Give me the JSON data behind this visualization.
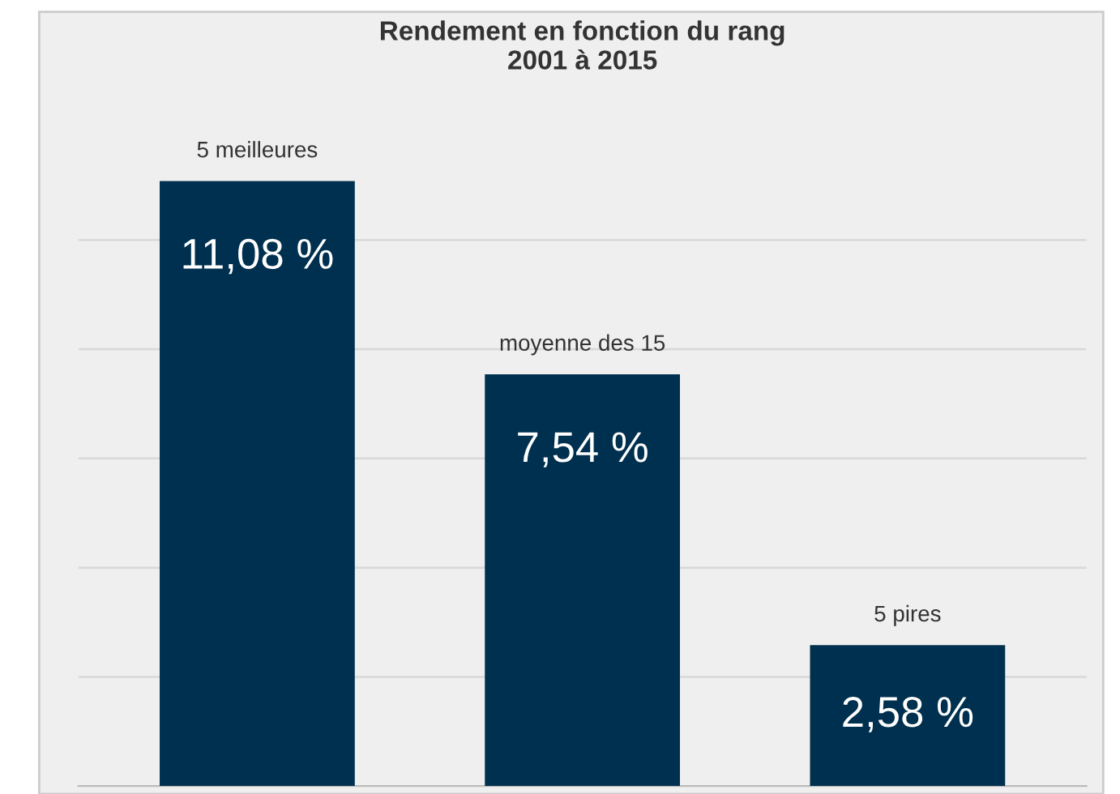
{
  "chart_data": {
    "type": "bar",
    "title": "Rendement en fonction du rang\n2001 à 2015",
    "categories": [
      "5 meilleures",
      "moyenne des 15",
      "5 pires"
    ],
    "values": [
      11.08,
      7.54,
      2.58
    ],
    "value_labels": [
      "11,08 %",
      "7,54 %",
      "2,58 %"
    ],
    "color": "#00304f",
    "grid": "y",
    "tick_labels": false
  }
}
